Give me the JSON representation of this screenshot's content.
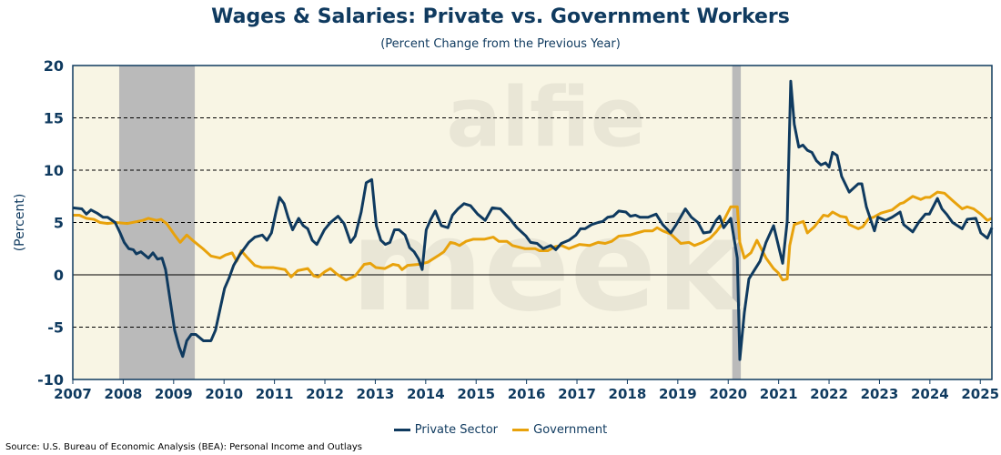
{
  "chart_data": {
    "type": "line",
    "title": "Wages & Salaries: Private vs. Government Workers",
    "subtitle": "(Percent Change from the Previous Year)",
    "ylabel": "(Percent)",
    "xlabel": "",
    "ylim": [
      -10,
      20
    ],
    "xlim": [
      2007,
      2025.23
    ],
    "yticks": [
      -10,
      -5,
      0,
      5,
      10,
      15,
      20
    ],
    "xticks": [
      2007,
      2008,
      2009,
      2010,
      2011,
      2012,
      2013,
      2014,
      2015,
      2016,
      2017,
      2018,
      2019,
      2020,
      2021,
      2022,
      2023,
      2024,
      2025
    ],
    "grid": "horizontal dashed",
    "legend_position": "bottom",
    "recessions": [
      [
        2007.92,
        2009.42
      ],
      [
        2020.08,
        2020.25
      ]
    ],
    "series": [
      {
        "name": "Private Sector",
        "color": "#0f3a5f",
        "points": [
          [
            2007.0,
            6.4
          ],
          [
            2007.18,
            6.3
          ],
          [
            2007.27,
            5.8
          ],
          [
            2007.36,
            6.2
          ],
          [
            2007.48,
            5.9
          ],
          [
            2007.6,
            5.5
          ],
          [
            2007.69,
            5.5
          ],
          [
            2007.84,
            5.0
          ],
          [
            2007.93,
            4.1
          ],
          [
            2008.02,
            3.1
          ],
          [
            2008.11,
            2.5
          ],
          [
            2008.2,
            2.4
          ],
          [
            2008.26,
            2.0
          ],
          [
            2008.35,
            2.2
          ],
          [
            2008.5,
            1.6
          ],
          [
            2008.59,
            2.1
          ],
          [
            2008.68,
            1.5
          ],
          [
            2008.77,
            1.6
          ],
          [
            2008.84,
            0.5
          ],
          [
            2008.93,
            -2.4
          ],
          [
            2009.02,
            -5.3
          ],
          [
            2009.11,
            -6.9
          ],
          [
            2009.18,
            -7.8
          ],
          [
            2009.26,
            -6.3
          ],
          [
            2009.35,
            -5.7
          ],
          [
            2009.44,
            -5.7
          ],
          [
            2009.59,
            -6.3
          ],
          [
            2009.74,
            -6.3
          ],
          [
            2009.83,
            -5.3
          ],
          [
            2009.92,
            -3.3
          ],
          [
            2010.01,
            -1.3
          ],
          [
            2010.1,
            -0.3
          ],
          [
            2010.19,
            0.9
          ],
          [
            2010.31,
            1.9
          ],
          [
            2010.49,
            3.1
          ],
          [
            2010.61,
            3.6
          ],
          [
            2010.76,
            3.8
          ],
          [
            2010.85,
            3.3
          ],
          [
            2010.94,
            4.0
          ],
          [
            2011.03,
            6.0
          ],
          [
            2011.1,
            7.4
          ],
          [
            2011.19,
            6.8
          ],
          [
            2011.27,
            5.5
          ],
          [
            2011.36,
            4.3
          ],
          [
            2011.48,
            5.4
          ],
          [
            2011.57,
            4.7
          ],
          [
            2011.66,
            4.4
          ],
          [
            2011.75,
            3.3
          ],
          [
            2011.84,
            2.9
          ],
          [
            2011.99,
            4.3
          ],
          [
            2012.11,
            5.0
          ],
          [
            2012.26,
            5.6
          ],
          [
            2012.38,
            4.9
          ],
          [
            2012.51,
            3.1
          ],
          [
            2012.6,
            3.7
          ],
          [
            2012.72,
            6.0
          ],
          [
            2012.82,
            8.8
          ],
          [
            2012.93,
            9.1
          ],
          [
            2013.02,
            4.7
          ],
          [
            2013.11,
            3.3
          ],
          [
            2013.2,
            2.9
          ],
          [
            2013.29,
            3.1
          ],
          [
            2013.38,
            4.3
          ],
          [
            2013.47,
            4.3
          ],
          [
            2013.59,
            3.8
          ],
          [
            2013.68,
            2.6
          ],
          [
            2013.77,
            2.2
          ],
          [
            2013.86,
            1.5
          ],
          [
            2013.93,
            0.5
          ],
          [
            2014.01,
            4.3
          ],
          [
            2014.1,
            5.3
          ],
          [
            2014.19,
            6.1
          ],
          [
            2014.31,
            4.7
          ],
          [
            2014.44,
            4.5
          ],
          [
            2014.53,
            5.7
          ],
          [
            2014.64,
            6.3
          ],
          [
            2014.76,
            6.8
          ],
          [
            2014.89,
            6.6
          ],
          [
            2015.03,
            5.8
          ],
          [
            2015.18,
            5.2
          ],
          [
            2015.32,
            6.4
          ],
          [
            2015.48,
            6.3
          ],
          [
            2015.66,
            5.4
          ],
          [
            2015.81,
            4.5
          ],
          [
            2015.9,
            4.1
          ],
          [
            2015.99,
            3.7
          ],
          [
            2016.08,
            3.1
          ],
          [
            2016.21,
            3.0
          ],
          [
            2016.33,
            2.5
          ],
          [
            2016.48,
            2.8
          ],
          [
            2016.58,
            2.4
          ],
          [
            2016.69,
            3.0
          ],
          [
            2016.84,
            3.3
          ],
          [
            2016.98,
            3.8
          ],
          [
            2017.07,
            4.4
          ],
          [
            2017.16,
            4.4
          ],
          [
            2017.29,
            4.8
          ],
          [
            2017.42,
            5.0
          ],
          [
            2017.51,
            5.1
          ],
          [
            2017.61,
            5.5
          ],
          [
            2017.72,
            5.6
          ],
          [
            2017.83,
            6.1
          ],
          [
            2017.97,
            6.0
          ],
          [
            2018.06,
            5.6
          ],
          [
            2018.16,
            5.7
          ],
          [
            2018.25,
            5.5
          ],
          [
            2018.41,
            5.5
          ],
          [
            2018.57,
            5.8
          ],
          [
            2018.7,
            4.8
          ],
          [
            2018.86,
            4.0
          ],
          [
            2018.97,
            4.8
          ],
          [
            2019.15,
            6.3
          ],
          [
            2019.27,
            5.5
          ],
          [
            2019.4,
            5.0
          ],
          [
            2019.51,
            4.0
          ],
          [
            2019.64,
            4.1
          ],
          [
            2019.76,
            5.2
          ],
          [
            2019.83,
            5.6
          ],
          [
            2019.91,
            4.5
          ],
          [
            2020.05,
            5.4
          ],
          [
            2020.18,
            1.6
          ],
          [
            2020.23,
            -8.1
          ],
          [
            2020.32,
            -3.6
          ],
          [
            2020.41,
            -0.4
          ],
          [
            2020.5,
            0.3
          ],
          [
            2020.63,
            1.3
          ],
          [
            2020.75,
            3.1
          ],
          [
            2020.9,
            4.7
          ],
          [
            2021.08,
            1.1
          ],
          [
            2021.17,
            5.1
          ],
          [
            2021.24,
            18.5
          ],
          [
            2021.31,
            14.4
          ],
          [
            2021.4,
            12.2
          ],
          [
            2021.48,
            12.4
          ],
          [
            2021.57,
            11.9
          ],
          [
            2021.66,
            11.7
          ],
          [
            2021.75,
            10.9
          ],
          [
            2021.84,
            10.5
          ],
          [
            2021.93,
            10.7
          ],
          [
            2022.0,
            10.3
          ],
          [
            2022.07,
            11.7
          ],
          [
            2022.16,
            11.4
          ],
          [
            2022.25,
            9.4
          ],
          [
            2022.4,
            7.9
          ],
          [
            2022.58,
            8.7
          ],
          [
            2022.65,
            8.7
          ],
          [
            2022.74,
            6.5
          ],
          [
            2022.9,
            4.2
          ],
          [
            2022.97,
            5.5
          ],
          [
            2023.12,
            5.2
          ],
          [
            2023.25,
            5.5
          ],
          [
            2023.41,
            6.0
          ],
          [
            2023.48,
            4.8
          ],
          [
            2023.66,
            4.1
          ],
          [
            2023.79,
            5.1
          ],
          [
            2023.91,
            5.8
          ],
          [
            2023.99,
            5.8
          ],
          [
            2024.15,
            7.3
          ],
          [
            2024.24,
            6.3
          ],
          [
            2024.33,
            5.8
          ],
          [
            2024.45,
            5.0
          ],
          [
            2024.64,
            4.4
          ],
          [
            2024.74,
            5.3
          ],
          [
            2024.91,
            5.4
          ],
          [
            2025.01,
            4.0
          ],
          [
            2025.14,
            3.5
          ],
          [
            2025.23,
            4.5
          ]
        ]
      },
      {
        "name": "Government",
        "color": "#e8a20c",
        "points": [
          [
            2007.0,
            5.7
          ],
          [
            2007.13,
            5.7
          ],
          [
            2007.27,
            5.4
          ],
          [
            2007.42,
            5.3
          ],
          [
            2007.54,
            5.0
          ],
          [
            2007.69,
            4.9
          ],
          [
            2007.85,
            5.0
          ],
          [
            2008.08,
            4.9
          ],
          [
            2008.39,
            5.2
          ],
          [
            2008.5,
            5.4
          ],
          [
            2008.66,
            5.2
          ],
          [
            2008.75,
            5.3
          ],
          [
            2008.86,
            4.9
          ],
          [
            2009.02,
            3.8
          ],
          [
            2009.13,
            3.1
          ],
          [
            2009.26,
            3.8
          ],
          [
            2009.4,
            3.2
          ],
          [
            2009.58,
            2.5
          ],
          [
            2009.74,
            1.8
          ],
          [
            2009.92,
            1.6
          ],
          [
            2010.03,
            1.9
          ],
          [
            2010.16,
            2.1
          ],
          [
            2010.25,
            1.3
          ],
          [
            2010.34,
            2.3
          ],
          [
            2010.47,
            1.6
          ],
          [
            2010.61,
            0.9
          ],
          [
            2010.75,
            0.7
          ],
          [
            2010.97,
            0.7
          ],
          [
            2011.21,
            0.5
          ],
          [
            2011.33,
            -0.2
          ],
          [
            2011.46,
            0.4
          ],
          [
            2011.66,
            0.6
          ],
          [
            2011.78,
            -0.1
          ],
          [
            2011.87,
            -0.2
          ],
          [
            2012.0,
            0.3
          ],
          [
            2012.11,
            0.6
          ],
          [
            2012.23,
            0.1
          ],
          [
            2012.42,
            -0.5
          ],
          [
            2012.6,
            -0.1
          ],
          [
            2012.78,
            1.0
          ],
          [
            2012.9,
            1.1
          ],
          [
            2013.01,
            0.7
          ],
          [
            2013.19,
            0.6
          ],
          [
            2013.35,
            1.0
          ],
          [
            2013.46,
            0.9
          ],
          [
            2013.53,
            0.5
          ],
          [
            2013.64,
            0.9
          ],
          [
            2013.86,
            1.0
          ],
          [
            2014.04,
            1.2
          ],
          [
            2014.27,
            1.9
          ],
          [
            2014.36,
            2.2
          ],
          [
            2014.49,
            3.1
          ],
          [
            2014.58,
            3.0
          ],
          [
            2014.67,
            2.8
          ],
          [
            2014.8,
            3.2
          ],
          [
            2014.94,
            3.4
          ],
          [
            2015.16,
            3.4
          ],
          [
            2015.34,
            3.6
          ],
          [
            2015.45,
            3.2
          ],
          [
            2015.61,
            3.2
          ],
          [
            2015.72,
            2.8
          ],
          [
            2015.97,
            2.5
          ],
          [
            2016.17,
            2.5
          ],
          [
            2016.26,
            2.3
          ],
          [
            2016.42,
            2.3
          ],
          [
            2016.57,
            2.7
          ],
          [
            2016.69,
            2.8
          ],
          [
            2016.84,
            2.5
          ],
          [
            2017.05,
            2.9
          ],
          [
            2017.25,
            2.8
          ],
          [
            2017.42,
            3.1
          ],
          [
            2017.56,
            3.0
          ],
          [
            2017.69,
            3.2
          ],
          [
            2017.83,
            3.7
          ],
          [
            2018.05,
            3.8
          ],
          [
            2018.19,
            4.0
          ],
          [
            2018.34,
            4.2
          ],
          [
            2018.5,
            4.2
          ],
          [
            2018.59,
            4.5
          ],
          [
            2018.7,
            4.2
          ],
          [
            2018.86,
            3.9
          ],
          [
            2019.06,
            3.0
          ],
          [
            2019.22,
            3.1
          ],
          [
            2019.33,
            2.8
          ],
          [
            2019.49,
            3.1
          ],
          [
            2019.64,
            3.5
          ],
          [
            2019.76,
            4.1
          ],
          [
            2019.87,
            4.8
          ],
          [
            2020.05,
            6.5
          ],
          [
            2020.18,
            6.5
          ],
          [
            2020.23,
            3.1
          ],
          [
            2020.32,
            1.6
          ],
          [
            2020.45,
            2.1
          ],
          [
            2020.57,
            3.3
          ],
          [
            2020.75,
            1.6
          ],
          [
            2020.9,
            0.6
          ],
          [
            2020.99,
            0.2
          ],
          [
            2021.08,
            -0.5
          ],
          [
            2021.17,
            -0.4
          ],
          [
            2021.22,
            2.8
          ],
          [
            2021.31,
            4.8
          ],
          [
            2021.49,
            5.1
          ],
          [
            2021.57,
            4.0
          ],
          [
            2021.71,
            4.6
          ],
          [
            2021.89,
            5.7
          ],
          [
            2021.98,
            5.6
          ],
          [
            2022.07,
            6.0
          ],
          [
            2022.22,
            5.6
          ],
          [
            2022.34,
            5.5
          ],
          [
            2022.4,
            4.8
          ],
          [
            2022.58,
            4.4
          ],
          [
            2022.67,
            4.6
          ],
          [
            2022.79,
            5.4
          ],
          [
            2022.88,
            5.5
          ],
          [
            2023.03,
            5.9
          ],
          [
            2023.25,
            6.2
          ],
          [
            2023.41,
            6.8
          ],
          [
            2023.48,
            6.9
          ],
          [
            2023.66,
            7.5
          ],
          [
            2023.82,
            7.2
          ],
          [
            2023.91,
            7.4
          ],
          [
            2024.0,
            7.4
          ],
          [
            2024.15,
            7.9
          ],
          [
            2024.29,
            7.8
          ],
          [
            2024.45,
            7.1
          ],
          [
            2024.64,
            6.3
          ],
          [
            2024.74,
            6.5
          ],
          [
            2024.87,
            6.3
          ],
          [
            2025.01,
            5.8
          ],
          [
            2025.14,
            5.2
          ],
          [
            2025.23,
            5.4
          ]
        ]
      }
    ],
    "source": "Source: U.S. Bureau of Economic Analysis (BEA): Personal Income and Outlays",
    "watermark": [
      "alfie",
      "meek"
    ]
  }
}
